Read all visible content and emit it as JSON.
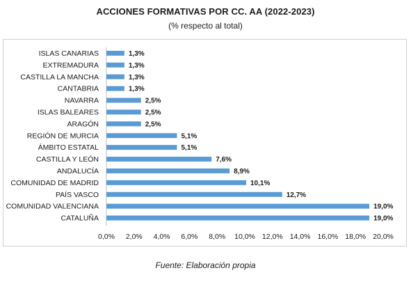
{
  "chart_data": {
    "type": "bar",
    "orientation": "horizontal",
    "title": "ACCIONES FORMATIVAS POR CC. AA (2022-2023)",
    "subtitle": "(% respecto al total)",
    "categories": [
      "ISLAS CANARIAS",
      "EXTREMADURA",
      "CASTILLA LA MANCHA",
      "CANTABRIA",
      "NAVARRA",
      "ISLAS BALEARES",
      "ARAGÓN",
      "REGIÓN DE MURCIA",
      "ÁMBITO ESTATAL",
      "CASTILLA Y LEÓN",
      "ANDALUCÍA",
      "COMUNIDAD DE MADRID",
      "PAÍS VASCO",
      "COMUNIDAD VALENCIANA",
      "CATALUÑA"
    ],
    "values": [
      1.3,
      1.3,
      1.3,
      1.3,
      2.5,
      2.5,
      2.5,
      5.1,
      5.1,
      7.6,
      8.9,
      10.1,
      12.7,
      19.0,
      19.0
    ],
    "data_labels": [
      "1,3%",
      "1,3%",
      "1,3%",
      "1,3%",
      "2,5%",
      "2,5%",
      "2,5%",
      "5,1%",
      "5,1%",
      "7,6%",
      "8,9%",
      "10,1%",
      "12,7%",
      "19,0%",
      "19,0%"
    ],
    "x_ticks": [
      "0,0%",
      "2,0%",
      "4,0%",
      "6,0%",
      "8,0%",
      "10,0%",
      "12,0%",
      "14,0%",
      "16,0%",
      "18,0%",
      "20,0%"
    ],
    "xlim": [
      0,
      20
    ],
    "grid": false,
    "legend": "none",
    "bar_color": "#5b9bd5"
  },
  "source_note": "Fuente: Elaboración propia"
}
